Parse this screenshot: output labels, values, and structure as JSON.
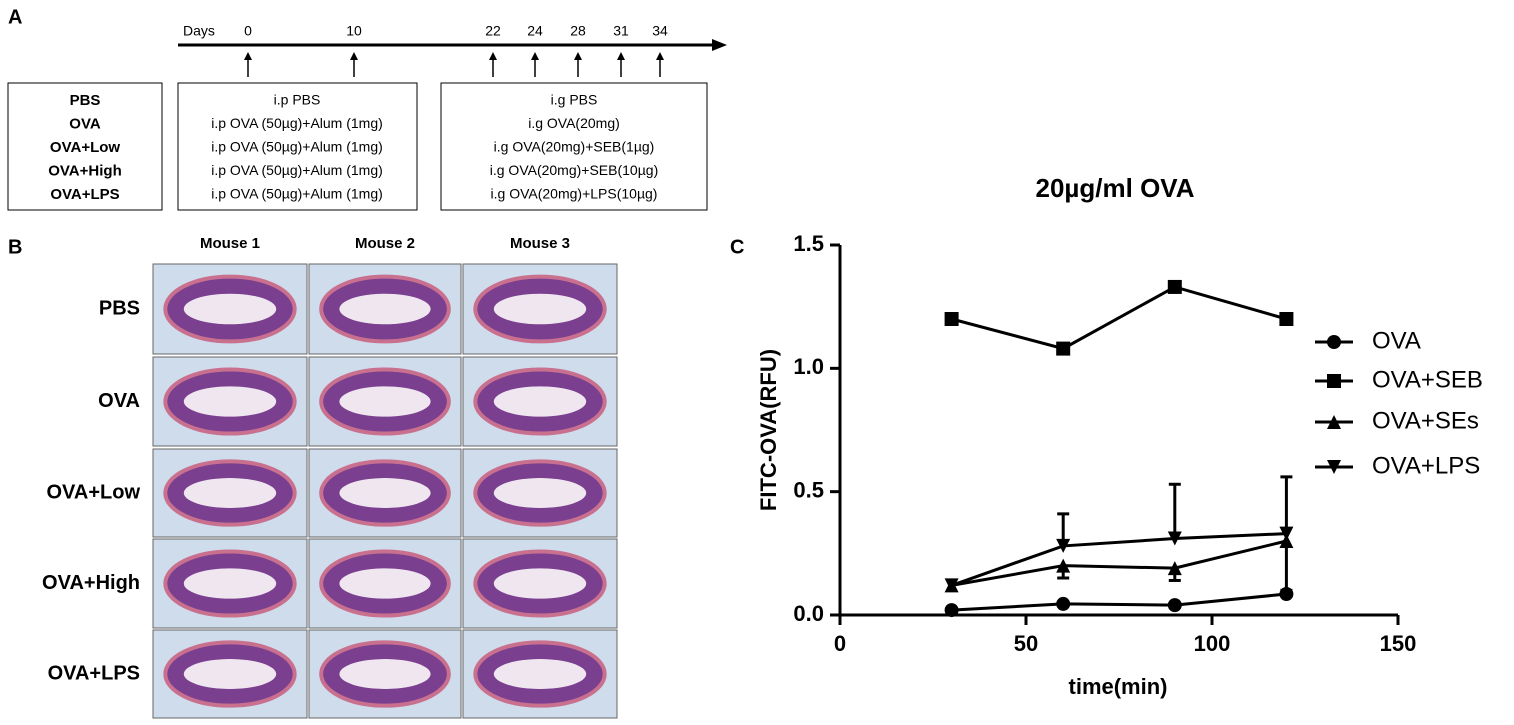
{
  "panel_a": {
    "label": "A",
    "days_label": "Days",
    "days": [
      0,
      10,
      22,
      24,
      28,
      31,
      34
    ],
    "groups": [
      "PBS",
      "OVA",
      "OVA+Low",
      "OVA+High",
      "OVA+LPS"
    ],
    "ip_treatments": [
      "i.p PBS",
      "i.p OVA (50µg)+Alum (1mg)",
      "i.p OVA (50µg)+Alum (1mg)",
      "i.p OVA (50µg)+Alum (1mg)",
      "i.p OVA (50µg)+Alum (1mg)"
    ],
    "ig_treatments": [
      "i.g PBS",
      "i.g OVA(20mg)",
      "i.g OVA(20mg)+SEB(1µg)",
      "i.g OVA(20mg)+SEB(10µg)",
      "i.g OVA(20mg)+LPS(10µg)"
    ]
  },
  "panel_b": {
    "label": "B",
    "columns": [
      "Mouse 1",
      "Mouse 2",
      "Mouse 3"
    ],
    "rows": [
      "PBS",
      "OVA",
      "OVA+Low",
      "OVA+High",
      "OVA+LPS"
    ]
  },
  "chart_data": {
    "type": "line",
    "panel_label": "C",
    "title": "20µg/ml OVA",
    "x_label": "time(min)",
    "y_label": "FITC-OVA(RFU)",
    "x": [
      30,
      60,
      90,
      120
    ],
    "series": [
      {
        "name": "OVA",
        "marker": "circle",
        "color": "#000000",
        "values": [
          0.02,
          0.045,
          0.04,
          0.085
        ]
      },
      {
        "name": "OVA+SEB",
        "marker": "square",
        "color": "#000000",
        "values": [
          1.2,
          1.08,
          1.33,
          1.2
        ]
      },
      {
        "name": "OVA+SEs",
        "marker": "triangle-up",
        "color": "#000000",
        "values": [
          0.12,
          0.2,
          0.19,
          0.3
        ],
        "errors": [
          null,
          0.05,
          0.05,
          0.2
        ]
      },
      {
        "name": "OVA+LPS",
        "marker": "triangle-down",
        "color": "#000000",
        "values": [
          0.12,
          0.28,
          0.31,
          0.33
        ],
        "errors": [
          null,
          0.13,
          0.22,
          0.23
        ]
      }
    ],
    "xlim": [
      0,
      150
    ],
    "ylim": [
      0,
      1.5
    ],
    "xticks": [
      0,
      50,
      100,
      150
    ],
    "yticks": [
      {
        "value": 0,
        "label": "0.0"
      },
      {
        "value": 0.5,
        "label": "0.5"
      },
      {
        "value": 1,
        "label": "1.0"
      },
      {
        "value": 1.5,
        "label": "1.5"
      }
    ],
    "legend": "right"
  }
}
